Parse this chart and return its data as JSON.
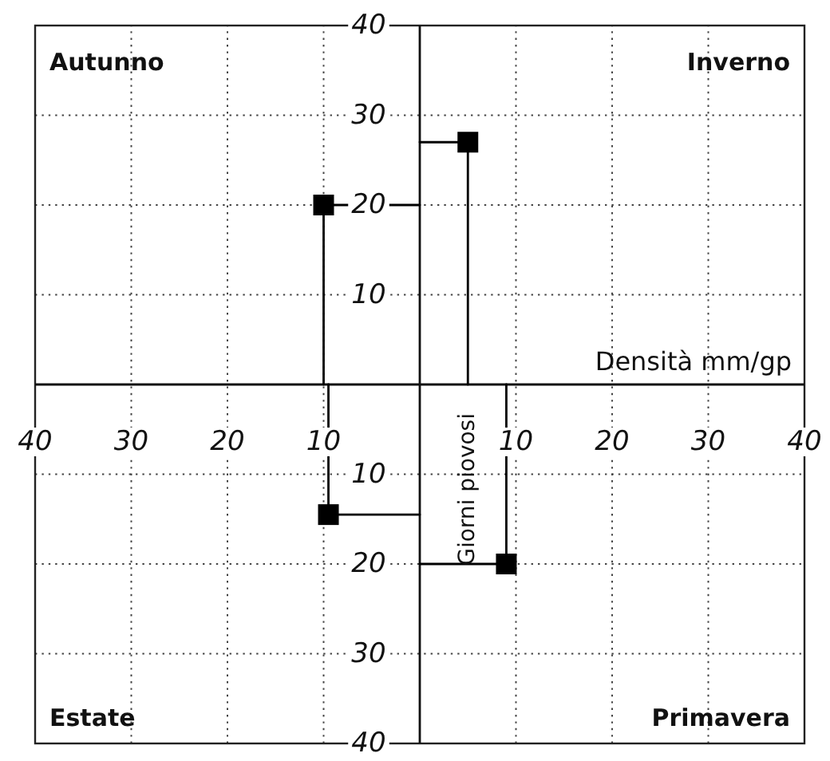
{
  "chart_data": {
    "type": "scatter",
    "xlabel": "Densità mm/gp",
    "ylabel": "Giorni piovosi",
    "annotations": [
      "Autunno",
      "Inverno",
      "Estate",
      "Primavera"
    ],
    "xlim": [
      -40,
      40
    ],
    "ylim": [
      -40,
      40
    ],
    "xticks": [
      {
        "value": -40,
        "label": "40"
      },
      {
        "value": -30,
        "label": "30"
      },
      {
        "value": -20,
        "label": "20"
      },
      {
        "value": -10,
        "label": "10"
      },
      10,
      20,
      30,
      40
    ],
    "yticks": [
      {
        "value": -40,
        "label": "40"
      },
      {
        "value": -30,
        "label": "30"
      },
      {
        "value": -20,
        "label": "20"
      },
      {
        "value": -10,
        "label": "10"
      },
      10,
      20,
      30,
      40
    ],
    "grid": true,
    "series": [
      {
        "type": "line",
        "x": [
          -10,
          -10,
          0
        ],
        "values": [
          0,
          20,
          20
        ],
        "color": "#000000"
      },
      {
        "type": "line",
        "x": [
          5,
          5,
          0
        ],
        "values": [
          0,
          27,
          27
        ],
        "color": "#000000"
      },
      {
        "type": "line",
        "x": [
          -9.5,
          -9.5,
          0
        ],
        "values": [
          0,
          -14.5,
          -14.5
        ],
        "color": "#000000"
      },
      {
        "type": "line",
        "x": [
          9,
          9,
          0
        ],
        "values": [
          0,
          -20,
          -20
        ],
        "color": "#000000"
      },
      {
        "x": [
          -10,
          5,
          -9.5,
          9
        ],
        "values": [
          20,
          27,
          -14.5,
          -20
        ],
        "color": "#000000",
        "marker": "square"
      }
    ]
  }
}
